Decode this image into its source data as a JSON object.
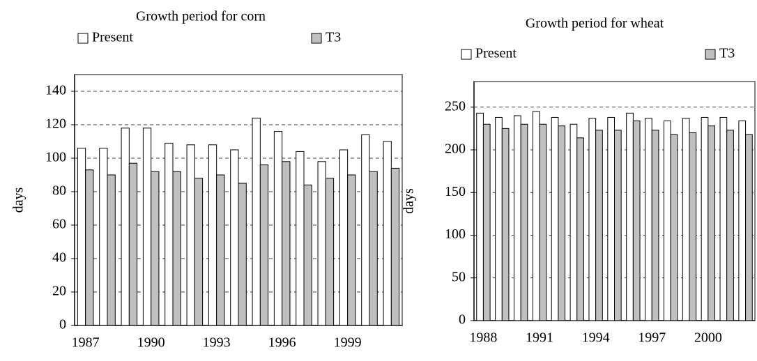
{
  "chart_data": [
    {
      "type": "bar",
      "title": "Growth period for corn",
      "y_label": "days",
      "categories": [
        "1987",
        null,
        null,
        "1990",
        null,
        null,
        "1993",
        null,
        null,
        "1996",
        null,
        null,
        "1999",
        null,
        null
      ],
      "series": [
        {
          "name": "Present",
          "color": "#ffffff",
          "values": [
            106,
            106,
            118,
            118,
            109,
            108,
            108,
            105,
            124,
            116,
            104,
            98,
            105,
            114,
            110
          ]
        },
        {
          "name": "T3",
          "color": "#c0c0c0",
          "values": [
            93,
            90,
            97,
            92,
            92,
            88,
            90,
            85,
            96,
            98,
            84,
            88,
            90,
            92,
            94
          ]
        }
      ],
      "ylim": [
        0,
        150
      ],
      "yticks": [
        0,
        20,
        40,
        60,
        80,
        100,
        120,
        140
      ],
      "grid": true
    },
    {
      "type": "bar",
      "title": "Growth period for wheat",
      "y_label": "days",
      "categories": [
        "1988",
        null,
        null,
        "1991",
        null,
        null,
        "1994",
        null,
        null,
        "1997",
        null,
        null,
        "2000",
        null,
        null
      ],
      "series": [
        {
          "name": "Present",
          "color": "#ffffff",
          "values": [
            243,
            238,
            240,
            245,
            238,
            230,
            237,
            238,
            243,
            237,
            234,
            237,
            238,
            238,
            234
          ]
        },
        {
          "name": "T3",
          "color": "#c0c0c0",
          "values": [
            230,
            225,
            230,
            230,
            228,
            214,
            223,
            223,
            234,
            223,
            218,
            220,
            228,
            223,
            218
          ]
        }
      ],
      "ylim": [
        0,
        280
      ],
      "yticks": [
        0,
        50,
        100,
        150,
        200,
        250
      ],
      "grid": true
    }
  ]
}
